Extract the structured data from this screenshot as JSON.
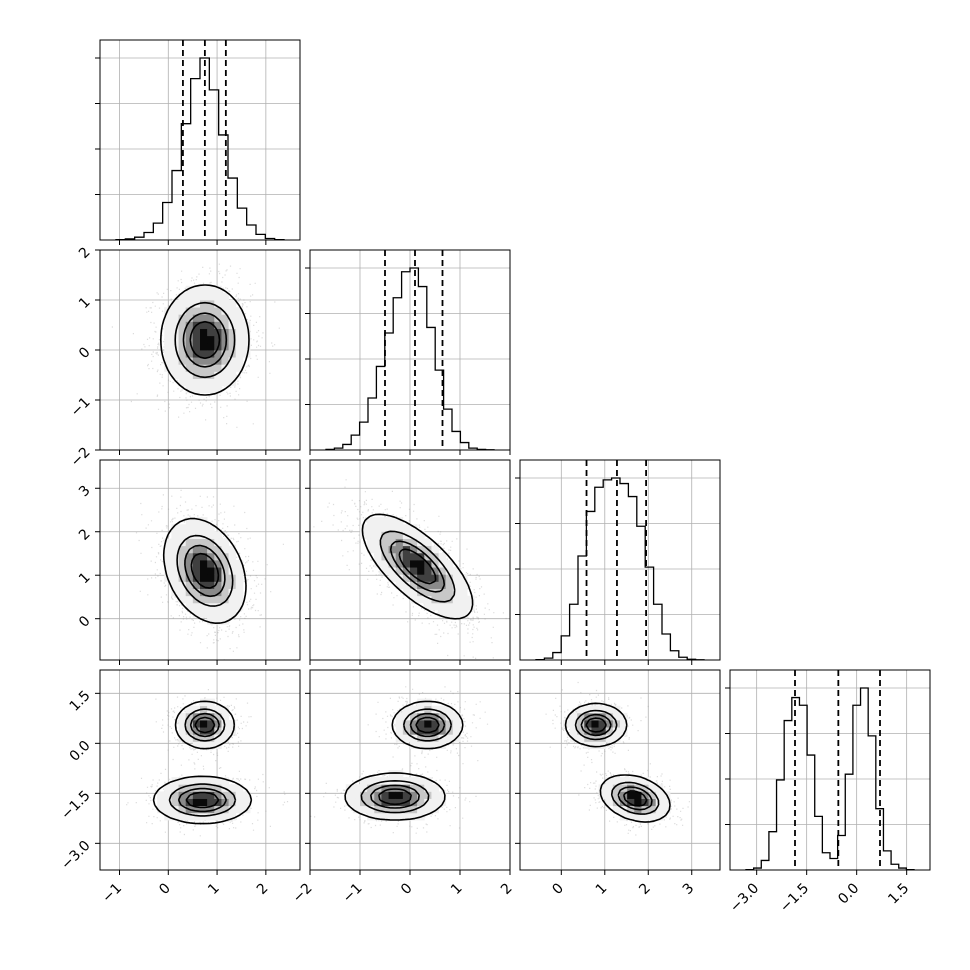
{
  "chart_data": {
    "type": "corner",
    "n_params": 4,
    "grid": true,
    "params": [
      {
        "range": [
          -1.4,
          2.7
        ],
        "ticks": [
          -1,
          0,
          1,
          2
        ],
        "tick_labels": [
          "−1",
          "0",
          "1",
          "2"
        ],
        "median": 0.75,
        "q16": 0.3,
        "q84": 1.18
      },
      {
        "range": [
          -2.0,
          2.0
        ],
        "ticks": [
          -2,
          -1,
          0,
          1,
          2
        ],
        "tick_labels": [
          "−2",
          "−1",
          "0",
          "1",
          "2"
        ],
        "median": 0.1,
        "q16": -0.5,
        "q84": 0.65
      },
      {
        "range": [
          -0.95,
          3.65
        ],
        "ticks": [
          0,
          1,
          2,
          3
        ],
        "tick_labels": [
          "0",
          "1",
          "2",
          "3"
        ],
        "median": 1.28,
        "q16": 0.58,
        "q84": 1.95
      },
      {
        "range": [
          -3.8,
          2.2
        ],
        "ticks": [
          -3.0,
          -1.5,
          0.0,
          1.5
        ],
        "tick_labels": [
          "−3.0",
          "−1.5",
          "0.0",
          "1.5"
        ],
        "median": -0.55,
        "q16": -1.85,
        "q84": 0.7
      }
    ],
    "marginals": [
      [
        0.002,
        0.006,
        0.015,
        0.04,
        0.09,
        0.2,
        0.37,
        0.62,
        0.86,
        0.97,
        0.8,
        0.56,
        0.33,
        0.17,
        0.08,
        0.03,
        0.008,
        0.002
      ],
      [
        0.003,
        0.01,
        0.03,
        0.08,
        0.15,
        0.28,
        0.45,
        0.63,
        0.82,
        0.96,
        0.98,
        0.88,
        0.66,
        0.43,
        0.22,
        0.1,
        0.04,
        0.01,
        0.003,
        0.001
      ],
      [
        0.002,
        0.01,
        0.04,
        0.13,
        0.3,
        0.56,
        0.8,
        0.93,
        0.97,
        0.98,
        0.95,
        0.88,
        0.72,
        0.5,
        0.3,
        0.14,
        0.05,
        0.015,
        0.004,
        0.001
      ],
      [
        0.002,
        0.01,
        0.05,
        0.2,
        0.47,
        0.78,
        0.9,
        0.86,
        0.6,
        0.28,
        0.09,
        0.06,
        0.18,
        0.5,
        0.86,
        0.95,
        0.7,
        0.32,
        0.1,
        0.03,
        0.01,
        0.002
      ]
    ],
    "joint": [
      {
        "row": 1,
        "col": 0,
        "components": [
          {
            "mx": 0.75,
            "my": 0.2,
            "sx": 0.45,
            "sy": 0.55,
            "rho": 0.0,
            "w": 1
          }
        ]
      },
      {
        "row": 2,
        "col": 0,
        "components": [
          {
            "mx": 0.75,
            "my": 1.1,
            "sx": 0.42,
            "sy": 0.6,
            "rho": -0.3,
            "w": 1
          }
        ]
      },
      {
        "row": 2,
        "col": 1,
        "components": [
          {
            "mx": 0.15,
            "my": 1.2,
            "sx": 0.55,
            "sy": 0.6,
            "rho": -0.7,
            "w": 1
          }
        ]
      },
      {
        "row": 3,
        "col": 0,
        "components": [
          {
            "mx": 0.75,
            "my": 0.55,
            "sx": 0.3,
            "sy": 0.35,
            "rho": 0.0,
            "w": 0.5
          },
          {
            "mx": 0.7,
            "my": -1.7,
            "sx": 0.5,
            "sy": 0.35,
            "rho": 0.0,
            "w": 0.5
          }
        ]
      },
      {
        "row": 3,
        "col": 1,
        "components": [
          {
            "mx": 0.35,
            "my": 0.55,
            "sx": 0.35,
            "sy": 0.35,
            "rho": 0.0,
            "w": 0.5
          },
          {
            "mx": -0.3,
            "my": -1.6,
            "sx": 0.5,
            "sy": 0.35,
            "rho": 0.0,
            "w": 0.5
          }
        ]
      },
      {
        "row": 3,
        "col": 2,
        "components": [
          {
            "mx": 0.8,
            "my": 0.55,
            "sx": 0.35,
            "sy": 0.32,
            "rho": 0.0,
            "w": 0.5
          },
          {
            "mx": 1.7,
            "my": -1.65,
            "sx": 0.4,
            "sy": 0.35,
            "rho": -0.3,
            "w": 0.5
          }
        ]
      }
    ]
  }
}
